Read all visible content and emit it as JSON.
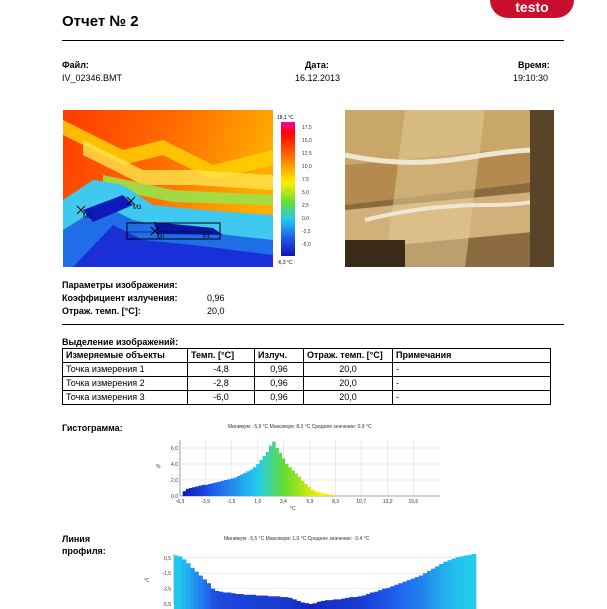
{
  "brand": "testo",
  "report_title": "Отчет № 2",
  "file": {
    "label": "Файл:",
    "value": "IV_02346.BMT"
  },
  "date": {
    "label": "Дата:",
    "value": "16.12.2013"
  },
  "time": {
    "label": "Время:",
    "value": "19:10:30"
  },
  "thermo": {
    "scale_max": "18,1 °C",
    "scale_min": "-6,3 °C",
    "scale_ticks": [
      "17,5",
      "15,0",
      "12,5",
      "10,0",
      "7,5",
      "5,0",
      "2,5",
      "0,0",
      "-2,5",
      "-5,0"
    ],
    "markers": [
      "M1",
      "M2",
      "M3",
      "P1"
    ]
  },
  "params": {
    "heading": "Параметры изображения:",
    "emissivity_label": "Коэффициент излучения:",
    "emissivity_value": "0,96",
    "refl_label": "Отраж. темп. [°C]:",
    "refl_value": "20,0"
  },
  "selection": {
    "heading": "Выделение изображений:",
    "headers": [
      "Измеряемые объекты",
      "Темп. [°C]",
      "Излуч.",
      "Отраж. темп. [°C]",
      "Примечания"
    ],
    "rows": [
      [
        "Точка измерения 1",
        "-4,8",
        "0,96",
        "20,0",
        "-"
      ],
      [
        "Точка измерения 2",
        "-2,8",
        "0,96",
        "20,0",
        "-"
      ],
      [
        "Точка измерения 3",
        "-6,0",
        "0,96",
        "20,0",
        "-"
      ]
    ]
  },
  "histogram": {
    "heading": "Гистограмма:",
    "stats": "Минимум: -5,9 °C Максимум: 8,3 °C Среднее значение: 0,9 °C",
    "ylabel": "%",
    "xunit": "°C"
  },
  "profile": {
    "heading": "Линия профиля:",
    "stats": "Минимум: -5,5 °C Максимум: 1,0 °C Среднее значение: -3,4 °C",
    "ylabel": "°C"
  },
  "chart_data": [
    {
      "type": "bar",
      "title": "Минимум: -5,9 °C Максимум: 8,3 °C Среднее значение: 0,9 °C",
      "xlabel": "°C",
      "ylabel": "%",
      "xlim": [
        -6.3,
        18.1
      ],
      "ylim": [
        0,
        7
      ],
      "x_ticks": [
        "-6,3",
        "-3,9",
        "-1,5",
        "1,0",
        "3,4",
        "5,9",
        "8,3",
        "10,7",
        "13,2",
        "15,6"
      ],
      "y_ticks": [
        "0,0",
        "2,0",
        "4,0",
        "6,0"
      ],
      "x": [
        -5.9,
        -5.6,
        -5.3,
        -5.0,
        -4.7,
        -4.4,
        -4.1,
        -3.8,
        -3.5,
        -3.2,
        -2.9,
        -2.6,
        -2.3,
        -2.0,
        -1.7,
        -1.4,
        -1.1,
        -0.8,
        -0.5,
        -0.2,
        0.1,
        0.4,
        0.7,
        1.0,
        1.3,
        1.6,
        1.9,
        2.2,
        2.5,
        2.8,
        3.1,
        3.4,
        3.7,
        4.0,
        4.3,
        4.6,
        4.9,
        5.2,
        5.5,
        5.8,
        6.1,
        6.4,
        6.7,
        7.0,
        7.3,
        7.6,
        7.9,
        8.2
      ],
      "values": [
        0.6,
        0.9,
        1.0,
        1.1,
        1.2,
        1.3,
        1.4,
        1.4,
        1.5,
        1.6,
        1.7,
        1.8,
        1.9,
        2.0,
        2.1,
        2.2,
        2.3,
        2.5,
        2.7,
        2.9,
        3.1,
        3.3,
        3.6,
        4.0,
        4.5,
        5.0,
        5.5,
        6.3,
        6.8,
        6.0,
        5.4,
        4.7,
        4.0,
        3.6,
        3.2,
        2.8,
        2.4,
        1.9,
        1.5,
        1.1,
        0.8,
        0.6,
        0.5,
        0.4,
        0.3,
        0.2,
        0.15,
        0.1
      ]
    },
    {
      "type": "bar",
      "title": "Минимум: -5,5 °C Максимум: 1,0 °C Среднее значение: -3,4 °C",
      "ylabel": "°C",
      "ylim": [
        -5.5,
        1.0
      ],
      "y_ticks": [
        "0,5",
        "-1,5",
        "-3,5",
        "-5,5"
      ],
      "values": [
        0.8,
        0.7,
        0.3,
        -0.2,
        -0.8,
        -1.3,
        -1.8,
        -2.3,
        -2.8,
        -3.5,
        -3.8,
        -3.9,
        -4.0,
        -4.0,
        -4.1,
        -4.2,
        -4.2,
        -4.3,
        -4.3,
        -4.3,
        -4.4,
        -4.4,
        -4.4,
        -4.5,
        -4.5,
        -4.5,
        -4.6,
        -4.6,
        -4.7,
        -4.9,
        -5.1,
        -5.3,
        -5.4,
        -5.5,
        -5.4,
        -5.2,
        -5.1,
        -5.0,
        -5.0,
        -4.9,
        -4.9,
        -4.8,
        -4.7,
        -4.6,
        -4.6,
        -4.5,
        -4.4,
        -4.2,
        -4.0,
        -3.9,
        -3.7,
        -3.5,
        -3.4,
        -3.2,
        -3.0,
        -2.8,
        -2.6,
        -2.4,
        -2.2,
        -2.0,
        -1.8,
        -1.5,
        -1.2,
        -0.9,
        -0.6,
        -0.3,
        0.0,
        0.2,
        0.4,
        0.6,
        0.7,
        0.8,
        0.9,
        1.0
      ]
    }
  ]
}
